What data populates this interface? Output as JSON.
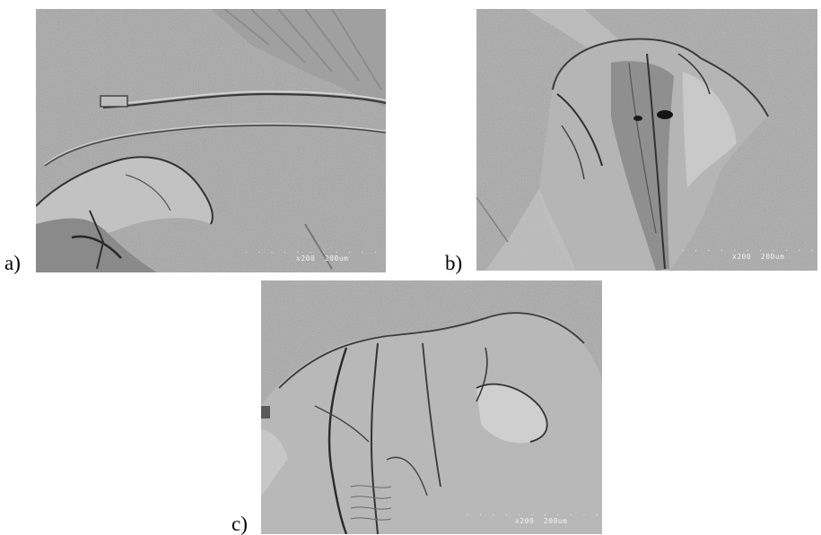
{
  "figure": {
    "panels": [
      {
        "id": "a",
        "label": "a)",
        "magnification": "x200",
        "scale": "200um"
      },
      {
        "id": "b",
        "label": "b)",
        "magnification": "x200",
        "scale": "200um"
      },
      {
        "id": "c",
        "label": "c)",
        "magnification": "x200",
        "scale": "200um"
      }
    ],
    "scalebar_dots": ". . . . . . . . . . ."
  }
}
